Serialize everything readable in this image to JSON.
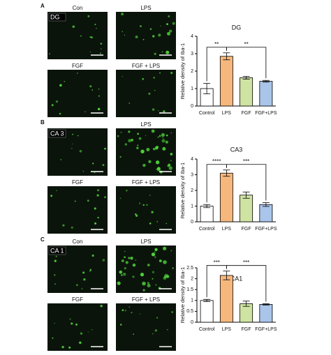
{
  "panels": [
    {
      "letter": "A",
      "region": "DG",
      "images": [
        "Con",
        "LPS",
        "FGF",
        "FGF + LPS"
      ]
    },
    {
      "letter": "B",
      "region": "CA 3",
      "images": [
        null,
        "LPS",
        "FGF",
        "FGF + LPS"
      ]
    },
    {
      "letter": "C",
      "region": "CA 1",
      "images": [
        "Con",
        "LPS",
        "FGF",
        "FGF + LPS"
      ]
    }
  ],
  "chart_data": [
    {
      "type": "bar",
      "title": "DG",
      "y_label": "Relative density of Iba-1",
      "categories": [
        "Control",
        "LPS",
        "FGF",
        "FGF+LPS"
      ],
      "values": [
        1.0,
        2.85,
        1.62,
        1.42
      ],
      "errors": [
        0.3,
        0.2,
        0.08,
        0.05
      ],
      "colors": [
        "#ffffff",
        "#f5b77c",
        "#cfe3a3",
        "#a9c5ea"
      ],
      "ylim": [
        0,
        4
      ],
      "yticks": [
        0,
        1,
        2,
        3,
        4
      ],
      "annotations": [
        {
          "label": "**",
          "between": [
            "Control",
            "LPS"
          ]
        },
        {
          "label": "**",
          "between": [
            "LPS",
            "FGF+LPS"
          ]
        }
      ]
    },
    {
      "type": "bar",
      "title": "CA3",
      "y_label": "Relative density of Iba-1",
      "categories": [
        "Control",
        "LPS",
        "FGF",
        "FGF+LPS"
      ],
      "values": [
        1.0,
        3.1,
        1.7,
        1.1
      ],
      "errors": [
        0.1,
        0.2,
        0.2,
        0.12
      ],
      "colors": [
        "#ffffff",
        "#f5b77c",
        "#cfe3a3",
        "#a9c5ea"
      ],
      "ylim": [
        0,
        4
      ],
      "yticks": [
        0,
        1,
        2,
        3,
        4
      ],
      "annotations": [
        {
          "label": "****",
          "between": [
            "Control",
            "LPS"
          ]
        },
        {
          "label": "***",
          "between": [
            "LPS",
            "FGF+LPS"
          ]
        }
      ]
    },
    {
      "type": "bar",
      "title": "CA1",
      "y_label": "Relative density of Iba-1",
      "categories": [
        "Control",
        "LPS",
        "FGF",
        "FGF+LPS"
      ],
      "values": [
        1.0,
        2.15,
        0.85,
        0.82
      ],
      "errors": [
        0.05,
        0.2,
        0.12,
        0.03
      ],
      "colors": [
        "#ffffff",
        "#f5b77c",
        "#cfe3a3",
        "#a9c5ea"
      ],
      "ylim": [
        0,
        2.5
      ],
      "yticks": [
        0,
        0.5,
        1,
        1.5,
        2,
        2.5
      ],
      "annotations": [
        {
          "label": "***",
          "between": [
            "Control",
            "LPS"
          ]
        },
        {
          "label": "***",
          "between": [
            "LPS",
            "FGF+LPS"
          ]
        }
      ]
    }
  ]
}
